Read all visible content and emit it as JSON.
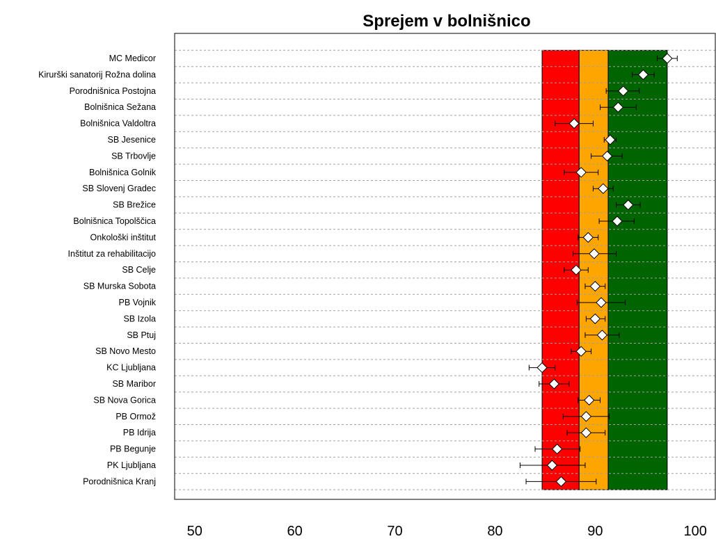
{
  "chart_data": {
    "type": "dot-errorbar",
    "title": "Sprejem v bolnišnico",
    "xlabel": "",
    "ylabel": "",
    "xlim": [
      48,
      102
    ],
    "xticks": [
      50,
      60,
      70,
      80,
      90,
      100
    ],
    "grid": "dashed horizontal lines per category",
    "bands": [
      {
        "from": 84.7,
        "to": 88.4,
        "color": "#ff0000"
      },
      {
        "from": 88.4,
        "to": 91.3,
        "color": "#ffa500"
      },
      {
        "from": 91.3,
        "to": 97.2,
        "color": "#006400"
      }
    ],
    "categories": [
      "MC Medicor",
      "Kirurški sanatorij Rožna dolina",
      "Porodnišnica Postojna",
      "Bolnišnica Sežana",
      "Bolnišnica Valdoltra",
      "SB Jesenice",
      "SB Trbovlje",
      "Bolnišnica Golnik",
      "SB Slovenj Gradec",
      "SB Brežice",
      "Bolnišnica Topolščica",
      "Onkološki inštitut",
      "Inštitut za rehabilitacijo",
      "SB Celje",
      "SB Murska Sobota",
      "PB Vojnik",
      "SB Izola",
      "SB Ptuj",
      "SB Novo Mesto",
      "KC Ljubljana",
      "SB Maribor",
      "SB Nova Gorica",
      "PB Ormož",
      "PB Idrija",
      "PB Begunje",
      "PK Ljubljana",
      "Porodnišnica Kranj"
    ],
    "values": [
      97.2,
      94.8,
      92.8,
      92.3,
      87.9,
      91.5,
      91.2,
      88.6,
      90.8,
      93.3,
      92.2,
      89.3,
      89.9,
      88.1,
      90.0,
      90.6,
      90.0,
      90.7,
      88.6,
      84.7,
      85.9,
      89.4,
      89.1,
      89.1,
      86.2,
      85.7,
      86.6
    ],
    "lower": [
      96.2,
      93.7,
      91.1,
      90.5,
      86.0,
      90.9,
      89.6,
      86.9,
      89.8,
      92.1,
      90.4,
      88.3,
      87.8,
      86.9,
      89.0,
      88.2,
      89.1,
      89.0,
      87.6,
      83.4,
      84.4,
      88.3,
      86.8,
      87.2,
      84.0,
      82.5,
      83.1
    ],
    "upper": [
      98.2,
      95.9,
      94.4,
      94.1,
      89.8,
      92.1,
      92.7,
      90.3,
      91.8,
      94.5,
      93.9,
      90.3,
      92.1,
      89.3,
      91.0,
      93.0,
      91.0,
      92.4,
      89.6,
      86.0,
      87.4,
      90.5,
      91.4,
      91.0,
      88.5,
      89.0,
      90.1
    ],
    "colors": {
      "grid": "#a0a0a0",
      "marker_fill": "#ffffff",
      "marker_stroke": "#000000",
      "errorbar": "#000000"
    }
  }
}
